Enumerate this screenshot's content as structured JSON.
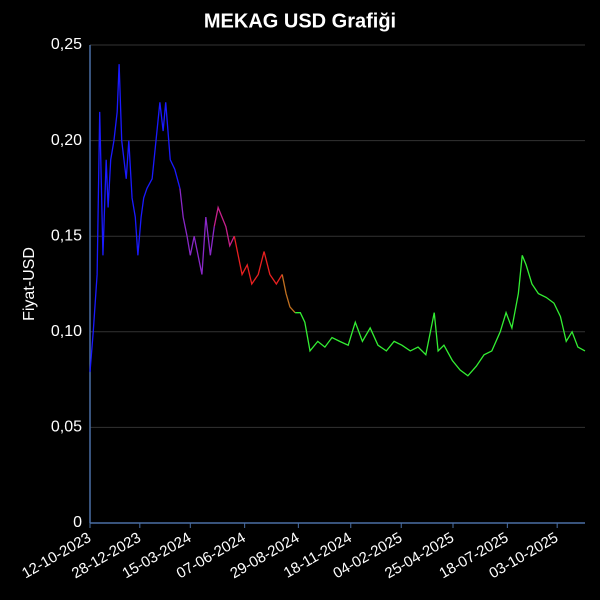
{
  "chart_data": {
    "type": "line",
    "title": "MEKAG USD Grafiği",
    "y_label": "Fiyat-USD",
    "xlim": [
      "12-10-2023",
      "15-11-2025"
    ],
    "xticks": [
      "12-10-2023",
      "28-12-2023",
      "15-03-2024",
      "07-06-2024",
      "29-08-2024",
      "18-11-2024",
      "04-02-2025",
      "25-04-2025",
      "18-07-2025",
      "03-10-2025"
    ],
    "ylim": [
      0,
      0.25
    ],
    "yticks": [
      0,
      {
        "value": 0.05,
        "label": "0,05"
      },
      {
        "value": 0.1,
        "label": "0,10"
      },
      {
        "value": 0.15,
        "label": "0,15"
      },
      {
        "value": 0.2,
        "label": "0,20"
      },
      {
        "value": 0.25,
        "label": "0,25"
      }
    ],
    "grid": true,
    "series": [
      {
        "color": "#1a1aff",
        "x": [
          "12-10-2023",
          "17-10-2023",
          "23-10-2023",
          "27-10-2023",
          "01-11-2023",
          "06-11-2023",
          "09-11-2023",
          "13-11-2023",
          "18-11-2023",
          "23-11-2023",
          "26-11-2023",
          "30-11-2023",
          "07-12-2023",
          "11-12-2023",
          "16-12-2023",
          "21-12-2023",
          "25-12-2023",
          "30-12-2023",
          "03-01-2024",
          "08-01-2024",
          "16-01-2024",
          "22-01-2024",
          "28-01-2024",
          "02-02-2024",
          "06-02-2024",
          "13-02-2024",
          "20-02-2024",
          "28-02-2024"
        ],
        "values": [
          0.079,
          0.1,
          0.13,
          0.215,
          0.14,
          0.19,
          0.165,
          0.19,
          0.2,
          0.215,
          0.24,
          0.2,
          0.18,
          0.2,
          0.17,
          0.16,
          0.14,
          0.16,
          0.17,
          0.175,
          0.18,
          0.2,
          0.22,
          0.205,
          0.22,
          0.19,
          0.185,
          0.175
        ]
      },
      {
        "color": "#8a28c8",
        "x": [
          "28-02-2024",
          "04-03-2024",
          "10-03-2024",
          "15-03-2024",
          "21-03-2024",
          "27-03-2024",
          "02-04-2024",
          "08-04-2024",
          "15-04-2024",
          "21-04-2024"
        ],
        "values": [
          0.175,
          0.16,
          0.15,
          0.14,
          0.15,
          0.14,
          0.13,
          0.16,
          0.14,
          0.155
        ]
      },
      {
        "color": "#c8208c",
        "x": [
          "21-04-2024",
          "27-04-2024",
          "03-05-2024",
          "09-05-2024",
          "15-05-2024",
          "22-05-2024"
        ],
        "values": [
          0.155,
          0.165,
          0.16,
          0.155,
          0.145,
          0.15
        ]
      },
      {
        "color": "#e82020",
        "x": [
          "22-05-2024",
          "28-05-2024",
          "03-06-2024",
          "11-06-2024",
          "18-06-2024",
          "28-06-2024",
          "07-07-2024",
          "16-07-2024",
          "26-07-2024",
          "04-08-2024"
        ],
        "values": [
          0.15,
          0.14,
          0.13,
          0.135,
          0.125,
          0.13,
          0.142,
          0.13,
          0.125,
          0.13
        ]
      },
      {
        "color": "#c07020",
        "x": [
          "04-08-2024",
          "10-08-2024",
          "16-08-2024",
          "24-08-2024"
        ],
        "values": [
          0.13,
          0.12,
          0.113,
          0.11
        ]
      },
      {
        "color": "#33ee33",
        "x": [
          "24-08-2024",
          "01-09-2024",
          "08-09-2024",
          "16-09-2024",
          "28-09-2024",
          "09-10-2024",
          "20-10-2024",
          "01-11-2024",
          "14-11-2024",
          "25-11-2024",
          "06-12-2024",
          "18-12-2024",
          "30-12-2024",
          "12-01-2025",
          "24-01-2025",
          "05-02-2025",
          "18-02-2025",
          "02-03-2025",
          "14-03-2025",
          "27-03-2025",
          "02-04-2025",
          "11-04-2025",
          "24-04-2025",
          "06-05-2025",
          "18-05-2025",
          "31-05-2025",
          "12-06-2025",
          "24-06-2025",
          "07-07-2025",
          "16-07-2025",
          "25-07-2025",
          "04-08-2025",
          "10-08-2025",
          "16-08-2025",
          "25-08-2025",
          "04-09-2025",
          "16-09-2025",
          "28-09-2025",
          "08-10-2025",
          "17-10-2025",
          "26-10-2025",
          "04-11-2025",
          "15-11-2025"
        ],
        "values": [
          0.11,
          0.11,
          0.105,
          0.09,
          0.095,
          0.092,
          0.097,
          0.095,
          0.093,
          0.105,
          0.095,
          0.102,
          0.093,
          0.09,
          0.095,
          0.093,
          0.09,
          0.092,
          0.088,
          0.11,
          0.09,
          0.093,
          0.085,
          0.08,
          0.077,
          0.082,
          0.088,
          0.09,
          0.1,
          0.11,
          0.102,
          0.12,
          0.14,
          0.135,
          0.125,
          0.12,
          0.118,
          0.115,
          0.108,
          0.095,
          0.1,
          0.092,
          0.09
        ]
      }
    ]
  }
}
